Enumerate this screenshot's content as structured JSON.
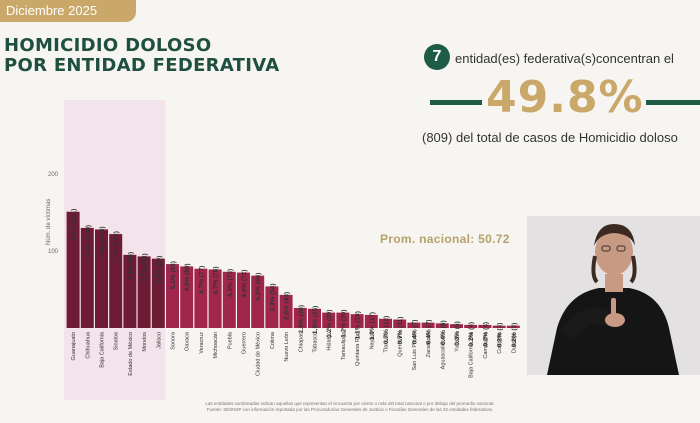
{
  "header": {
    "date": "Diciembre 2025"
  },
  "title": {
    "line1": "HOMICIDIO DOLOSO",
    "line2": "POR ENTIDAD FEDERATIVA"
  },
  "summary": {
    "entities_count": "7",
    "entities_text": "entidad(es) federativa(s)concentran el",
    "percent": "49.8%",
    "total_text": "(809) del total de casos de Homicidio doloso"
  },
  "chart_data": {
    "type": "bar",
    "ylabel": "Núm. de víctimas",
    "yticks": [
      100,
      200
    ],
    "ylim": [
      0,
      200
    ],
    "national_average_label": "Prom. nacional: 50.72",
    "national_average": 50.72,
    "categories": [
      "Guanajuato",
      "Chihuahua",
      "Baja California",
      "Sinaloa",
      "Estado de México",
      "Morelos",
      "Jalisco",
      "Sonora",
      "Oaxaca",
      "Veracruz",
      "Michoacán",
      "Puebla",
      "Guerrero",
      "Ciudad de México",
      "Colima",
      "Nuevo León",
      "Chiapas",
      "Tabasco",
      "Hidalgo",
      "Tamaulipas",
      "Quintana Roo",
      "Nayarit",
      "Tlaxcala",
      "Querétaro",
      "San Luis Potosí",
      "Zacatecas",
      "Aguascalientes",
      "Yucatán",
      "Baja California Sur",
      "Campeche",
      "Coahuila",
      "Durango"
    ],
    "values": [
      151,
      130,
      128,
      122,
      95,
      93,
      90,
      83,
      80,
      77,
      76,
      73,
      72,
      68,
      54,
      43,
      26,
      25,
      20,
      20,
      18,
      17,
      12,
      11,
      7,
      7,
      6,
      5,
      4,
      4,
      3,
      3
    ],
    "labels": [
      "9.3% (151)",
      "8.0% (130)",
      "7.9% (128)",
      "7.5% (122)",
      "5.9% (95)",
      "5.7% (93)",
      "5.5% (90)",
      "5.1% (83)",
      "4.9% (80)",
      "4.7% (77)",
      "4.7% (76)",
      "4.5% (73)",
      "4.4% (72)",
      "4.2% (68)",
      "3.3% (54)",
      "2.6% (43)",
      "1.6% (26)",
      "1.5% (25)",
      "1.2% (20)",
      "1.2% (20)",
      "1.1% (18)",
      "1.0% (17)",
      "0.7% (12)",
      "0.7% (11)",
      "0.4% (7)",
      "0.4% (7)",
      "0.4% (6)",
      "0.3% (5)",
      "0.2% (4)",
      "0.2% (4)",
      "0.2% (3)",
      "0.2% (3)"
    ],
    "highlight_count": 7,
    "colors": {
      "highlight": "#6e1b36",
      "normal": "#a1264d",
      "highlight_bg": "#f3e3ea",
      "label": "#333333"
    }
  },
  "footnote": {
    "line1": "Las entidades sombreadas indican aquellas que representan el cincuenta por ciento o más del total nacional o por debajo del promedio nacional.",
    "line2": "Fuente: SESNSP con información reportada por las Procuradurías Generales de Justicia o Fiscalías Generales de las 32 entidades federativas."
  }
}
